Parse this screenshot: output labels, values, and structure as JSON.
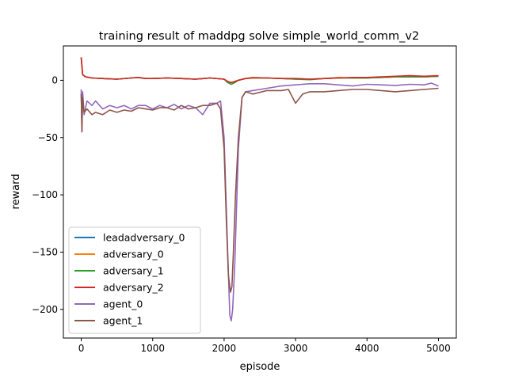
{
  "chart_data": {
    "type": "line",
    "title": "training result of maddpg solve simple_world_comm_v2",
    "xlabel": "episode",
    "ylabel": "reward",
    "xlim": [
      -250,
      5250
    ],
    "ylim": [
      -225,
      30
    ],
    "xticks": [
      0,
      1000,
      2000,
      3000,
      4000,
      5000
    ],
    "yticks": [
      0,
      -50,
      -100,
      -150,
      -200
    ],
    "legend_position": "lower-left",
    "grid": false,
    "series": [
      {
        "name": "leadadversary_0",
        "color": "#1f77b4",
        "x": [
          0,
          20,
          60,
          150,
          300,
          500,
          700,
          800,
          900,
          1000,
          1200,
          1400,
          1600,
          1800,
          2000,
          2050,
          2100,
          2150,
          2200,
          2300,
          2400,
          2600,
          2800,
          3000,
          3200,
          3400,
          3600,
          3800,
          4000,
          4200,
          4400,
          4600,
          4800,
          5000
        ],
        "values": [
          20,
          5,
          3,
          2,
          1.5,
          1,
          2,
          2.5,
          1.5,
          1.5,
          2,
          1.5,
          1,
          2,
          1,
          -1,
          -2,
          -1,
          0,
          1.5,
          2.5,
          2,
          1.5,
          1,
          1,
          1.5,
          2,
          2,
          2,
          2.5,
          3,
          3,
          3,
          3.5
        ]
      },
      {
        "name": "adversary_0",
        "color": "#ff7f0e",
        "x": [
          0,
          20,
          60,
          150,
          300,
          500,
          700,
          800,
          900,
          1000,
          1200,
          1400,
          1600,
          1800,
          2000,
          2050,
          2100,
          2150,
          2200,
          2300,
          2400,
          2600,
          2800,
          3000,
          3200,
          3400,
          3600,
          3800,
          4000,
          4200,
          4400,
          4600,
          4800,
          5000
        ],
        "values": [
          20,
          5,
          3,
          2,
          1.5,
          1,
          2,
          2.5,
          1.5,
          1.5,
          2,
          1.5,
          1,
          2,
          1,
          -1,
          -2,
          -1,
          0,
          1.5,
          2.5,
          2,
          1.5,
          1.5,
          1,
          1.5,
          2.5,
          2,
          2,
          2.5,
          3,
          4,
          3,
          3.5
        ]
      },
      {
        "name": "adversary_1",
        "color": "#2ca02c",
        "x": [
          0,
          20,
          60,
          150,
          300,
          500,
          700,
          800,
          900,
          1000,
          1200,
          1400,
          1600,
          1800,
          2000,
          2050,
          2100,
          2150,
          2200,
          2300,
          2400,
          2600,
          2800,
          3000,
          3200,
          3400,
          3600,
          3800,
          4000,
          4200,
          4400,
          4600,
          4800,
          5000
        ],
        "values": [
          20,
          5,
          3,
          2,
          1.5,
          1,
          2,
          2.5,
          1.5,
          1.5,
          2,
          1.5,
          1,
          2,
          1,
          -2,
          -3.5,
          -2,
          0,
          1.5,
          2,
          2,
          1.5,
          1,
          0.5,
          1.5,
          2,
          2,
          2,
          2.5,
          3,
          3,
          3,
          3.5
        ]
      },
      {
        "name": "adversary_2",
        "color": "#d62728",
        "x": [
          0,
          20,
          60,
          150,
          300,
          500,
          700,
          800,
          900,
          1000,
          1200,
          1400,
          1600,
          1800,
          2000,
          2050,
          2100,
          2150,
          2200,
          2300,
          2400,
          2600,
          2800,
          3000,
          3200,
          3400,
          3600,
          3800,
          4000,
          4200,
          4400,
          4600,
          4800,
          5000
        ],
        "values": [
          20,
          5,
          3,
          2,
          1.5,
          1,
          2,
          2.5,
          1.5,
          1.5,
          2,
          1.5,
          1,
          2,
          1,
          -1,
          -2,
          -1,
          0,
          1.5,
          2,
          2,
          1.5,
          1.5,
          1,
          1.5,
          2,
          2.5,
          2.5,
          3,
          3.5,
          4,
          3.5,
          4
        ]
      },
      {
        "name": "agent_0",
        "color": "#9467bd",
        "x": [
          0,
          10,
          20,
          40,
          80,
          150,
          200,
          300,
          400,
          500,
          600,
          700,
          800,
          900,
          1000,
          1100,
          1200,
          1300,
          1400,
          1500,
          1600,
          1700,
          1800,
          1900,
          1950,
          2000,
          2050,
          2080,
          2100,
          2120,
          2150,
          2200,
          2250,
          2300,
          2400,
          2600,
          2800,
          3000,
          3200,
          3400,
          3600,
          3800,
          4000,
          4200,
          4400,
          4600,
          4800,
          4900,
          5000
        ],
        "values": [
          -8,
          -45,
          -10,
          -30,
          -18,
          -22,
          -18,
          -25,
          -22,
          -24,
          -22,
          -25,
          -22,
          -22,
          -25,
          -22,
          -24,
          -21,
          -25,
          -22,
          -24,
          -30,
          -20,
          -20,
          -18,
          -50,
          -150,
          -205,
          -210,
          -200,
          -160,
          -60,
          -15,
          -10,
          -9,
          -7,
          -5,
          -4,
          -3,
          -3,
          -4,
          -5,
          -3.5,
          -4,
          -4.5,
          -3.5,
          -4,
          -2.5,
          -5
        ]
      },
      {
        "name": "agent_1",
        "color": "#8c564b",
        "x": [
          0,
          10,
          20,
          40,
          80,
          150,
          200,
          300,
          400,
          500,
          600,
          700,
          800,
          900,
          1000,
          1100,
          1200,
          1300,
          1400,
          1500,
          1600,
          1700,
          1800,
          1900,
          1950,
          2000,
          2030,
          2060,
          2090,
          2110,
          2130,
          2160,
          2200,
          2250,
          2300,
          2400,
          2600,
          2800,
          2900,
          3000,
          3100,
          3200,
          3400,
          3600,
          3800,
          4000,
          4200,
          4400,
          4600,
          4800,
          5000
        ],
        "values": [
          -12,
          -45,
          -15,
          -28,
          -25,
          -30,
          -28,
          -30,
          -26,
          -28,
          -26,
          -27,
          -24,
          -25,
          -26,
          -24,
          -24,
          -26,
          -22,
          -25,
          -24,
          -22,
          -22,
          -20,
          -25,
          -60,
          -120,
          -170,
          -185,
          -180,
          -150,
          -100,
          -50,
          -15,
          -10,
          -12,
          -9,
          -9,
          -8,
          -20,
          -12,
          -10,
          -10,
          -9,
          -8,
          -8,
          -9,
          -10,
          -9,
          -8,
          -7
        ]
      }
    ]
  }
}
